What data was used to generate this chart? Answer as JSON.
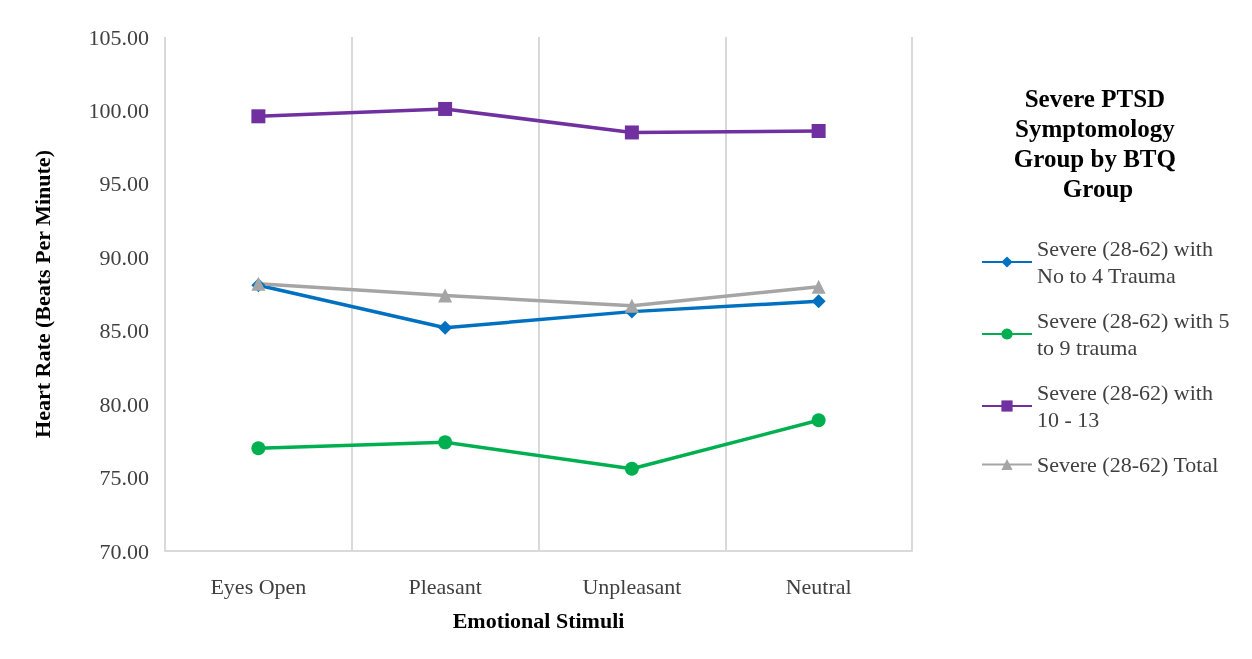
{
  "chart_data": {
    "type": "line",
    "xlabel": "Emotional Stimuli",
    "ylabel": "Heart Rate (Beats Per Minute)",
    "legend_title": "Severe PTSD Symptomology Group by BTQ Group",
    "categories": [
      "Eyes Open",
      "Pleasant",
      "Unpleasant",
      "Neutral"
    ],
    "series": [
      {
        "name": "Severe (28-62) with No to 4 Trauma",
        "color": "#0070c0",
        "marker": "diamond",
        "values": [
          88.1,
          85.2,
          86.3,
          87.0
        ]
      },
      {
        "name": "Severe (28-62) with 5 to 9 trauma",
        "color": "#00b050",
        "marker": "circle",
        "values": [
          77.0,
          77.4,
          75.6,
          78.9
        ]
      },
      {
        "name": "Severe (28-62) with 10 - 13",
        "color": "#7030a0",
        "marker": "square",
        "values": [
          99.6,
          100.1,
          98.5,
          98.6
        ]
      },
      {
        "name": "Severe (28-62) Total",
        "color": "#a5a5a5",
        "marker": "triangle",
        "values": [
          88.2,
          87.4,
          86.7,
          88.0
        ]
      }
    ],
    "ylim": [
      70,
      105
    ],
    "yticks": [
      {
        "value": 70,
        "label": "70.00"
      },
      {
        "value": 75,
        "label": "75.00"
      },
      {
        "value": 80,
        "label": "80.00"
      },
      {
        "value": 85,
        "label": "85.00"
      },
      {
        "value": 90,
        "label": "90.00"
      },
      {
        "value": 95,
        "label": "95.00"
      },
      {
        "value": 100,
        "label": "100.00"
      },
      {
        "value": 105,
        "label": "105.00"
      }
    ],
    "grid": "x",
    "legend": "right",
    "line_style": "solid"
  }
}
